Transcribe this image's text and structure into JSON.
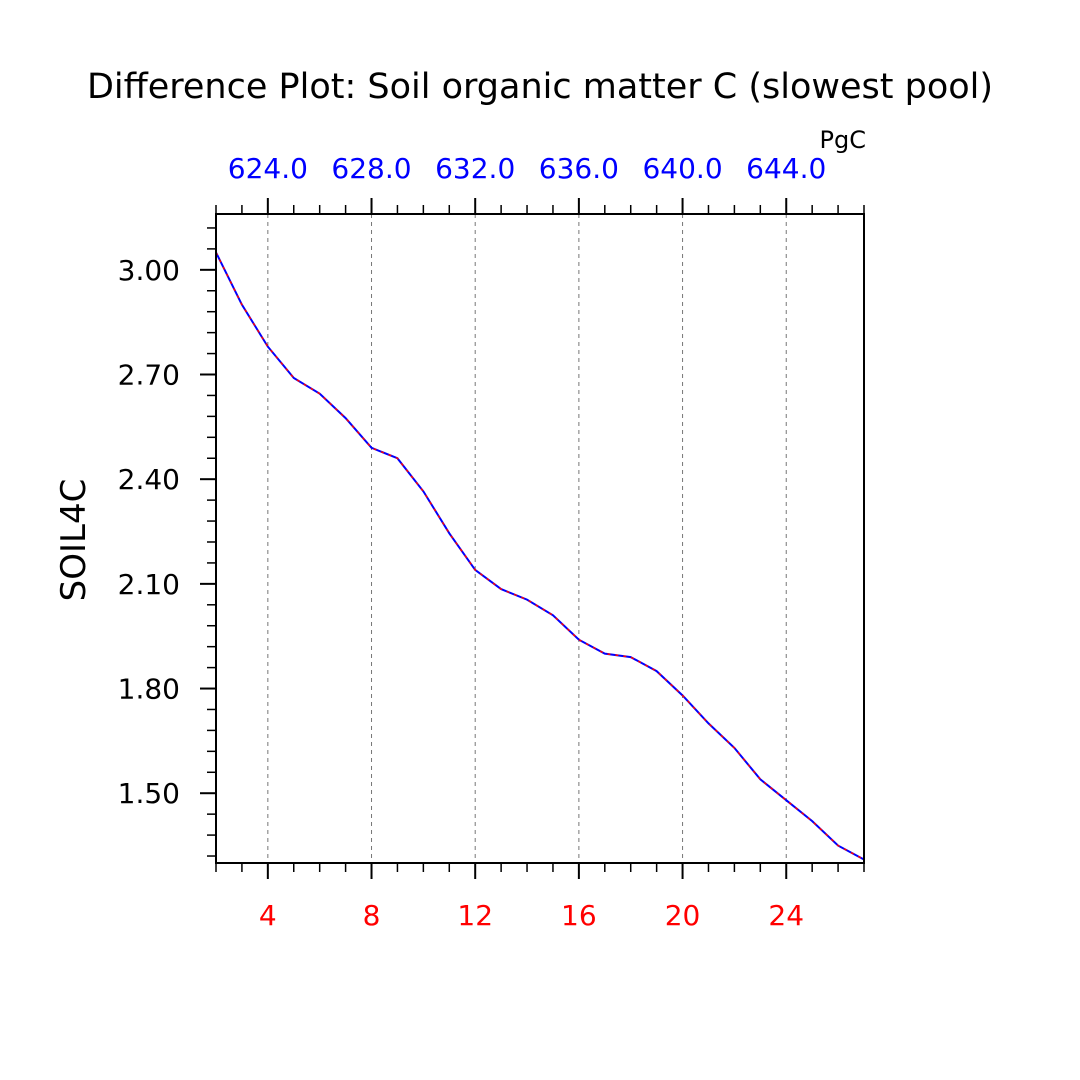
{
  "chart_data": {
    "type": "line",
    "title": "Difference Plot: Soil organic matter C (slowest pool)",
    "ylabel": "SOIL4C",
    "top_axis_units": "PgC",
    "xlim": [
      2,
      27
    ],
    "ylim": [
      1.3,
      3.16
    ],
    "bottom_ticks": [
      4,
      8,
      12,
      16,
      20,
      24
    ],
    "bottom_tick_labels": [
      "4",
      "8",
      "12",
      "16",
      "20",
      "24"
    ],
    "top_ticks": [
      4,
      8,
      12,
      16,
      20,
      24
    ],
    "top_tick_labels": [
      "624.0",
      "628.0",
      "632.0",
      "636.0",
      "640.0",
      "644.0"
    ],
    "left_ticks": [
      3.0,
      2.7,
      2.4,
      2.1,
      1.8,
      1.5
    ],
    "left_tick_labels": [
      "3.00",
      "2.70",
      "2.40",
      "2.10",
      "1.80",
      "1.50"
    ],
    "grid": "vertical-dashed",
    "colors": {
      "bottom_axis_labels": "#ff0000",
      "top_axis_labels": "#0000ff",
      "series_blue": "#0000ff",
      "series_red": "#ff0000"
    },
    "series": [
      {
        "x": [
          2,
          3,
          4,
          5,
          6,
          7,
          8,
          9,
          10,
          11,
          12,
          13,
          14,
          15,
          16,
          17,
          18,
          19,
          20,
          21,
          22,
          23,
          24,
          25,
          26,
          27
        ],
        "values": [
          3.05,
          2.9,
          2.78,
          2.69,
          2.645,
          2.575,
          2.49,
          2.46,
          2.365,
          2.245,
          2.14,
          2.085,
          2.055,
          2.01,
          1.94,
          1.9,
          1.89,
          1.85,
          1.78,
          1.7,
          1.63,
          1.54,
          1.48,
          1.42,
          1.35,
          1.31
        ]
      }
    ]
  }
}
